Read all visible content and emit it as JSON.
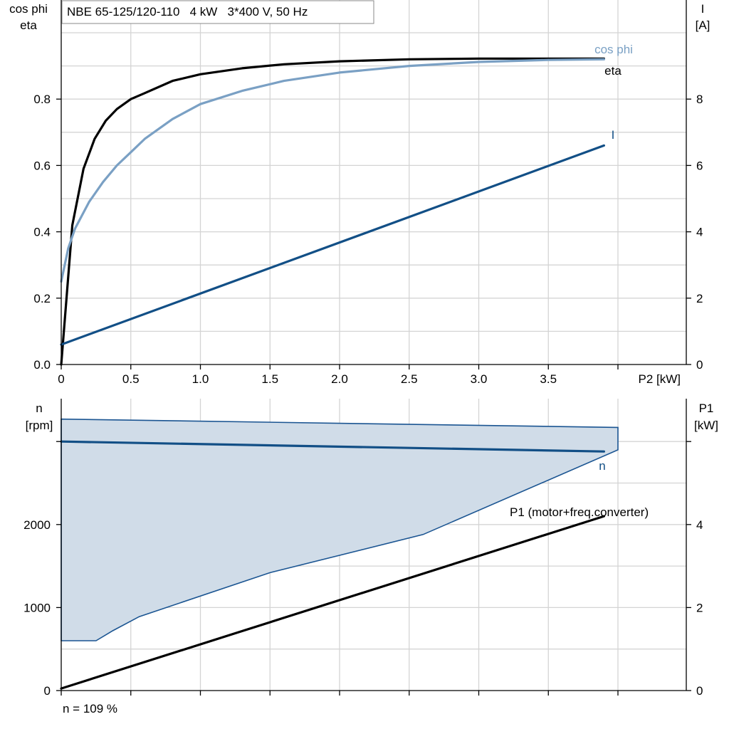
{
  "chart_data": [
    {
      "type": "line",
      "title": "NBE 65-125/120-110   4 kW   3*400 V, 50 Hz",
      "xlabel": "P2 [kW]",
      "ylabel_left": [
        "cos phi",
        "eta"
      ],
      "ylabel_right": [
        "I",
        "[A]"
      ],
      "xlim": [
        0,
        4.5
      ],
      "ylim_left": [
        0,
        1.0
      ],
      "ylim_right": [
        0,
        10
      ],
      "xticks": [
        0,
        0.5,
        1.0,
        1.5,
        2.0,
        2.5,
        3.0,
        3.5
      ],
      "xtick_labels": [
        "0",
        "0.5",
        "1.0",
        "1.5",
        "2.0",
        "2.5",
        "3.0",
        "3.5"
      ],
      "yticks_left": [
        0,
        0.2,
        0.4,
        0.6,
        0.8
      ],
      "ytick_labels_left": [
        "0.0",
        "0.2",
        "0.4",
        "0.6",
        "0.8"
      ],
      "yticks_right": [
        0,
        2,
        4,
        6,
        8
      ],
      "ytick_labels_right": [
        "0",
        "2",
        "4",
        "6",
        "8"
      ],
      "grid": true,
      "series": [
        {
          "name": "eta",
          "axis": "left",
          "color": "#000000",
          "x": [
            0,
            0.08,
            0.16,
            0.24,
            0.32,
            0.4,
            0.5,
            0.6,
            0.8,
            1.0,
            1.3,
            1.6,
            2.0,
            2.5,
            3.0,
            3.5,
            3.9
          ],
          "y": [
            0,
            0.42,
            0.59,
            0.68,
            0.735,
            0.77,
            0.8,
            0.818,
            0.855,
            0.875,
            0.893,
            0.905,
            0.914,
            0.92,
            0.922,
            0.922,
            0.922
          ]
        },
        {
          "name": "cos phi",
          "axis": "left",
          "color": "#7aa0c4",
          "x": [
            0,
            0.05,
            0.1,
            0.2,
            0.3,
            0.4,
            0.5,
            0.6,
            0.8,
            1.0,
            1.3,
            1.6,
            2.0,
            2.5,
            3.0,
            3.5,
            3.9
          ],
          "y": [
            0.25,
            0.35,
            0.41,
            0.49,
            0.55,
            0.6,
            0.64,
            0.68,
            0.74,
            0.785,
            0.825,
            0.855,
            0.88,
            0.9,
            0.912,
            0.918,
            0.92
          ]
        },
        {
          "name": "I",
          "axis": "right",
          "color": "#124f86",
          "x": [
            0,
            3.9
          ],
          "y": [
            0.6,
            6.6
          ]
        }
      ]
    },
    {
      "type": "line",
      "xlim": [
        0,
        4.5
      ],
      "ylabel_left": [
        "n",
        "[rpm]"
      ],
      "ylabel_right": [
        "P1",
        "[kW]"
      ],
      "ylim_left": [
        0,
        3400
      ],
      "ylim_right": [
        0,
        10
      ],
      "yticks_left": [
        0,
        1000,
        2000
      ],
      "ytick_labels_left": [
        "0",
        "1000",
        "2000"
      ],
      "yticks_right": [
        0,
        2,
        4
      ],
      "ytick_labels_right": [
        "0",
        "2",
        "4"
      ],
      "grid": true,
      "footnote": "n = 109 %",
      "series": [
        {
          "name": "n",
          "axis": "left",
          "color": "#124f86",
          "x": [
            0,
            3.9
          ],
          "y": [
            3000,
            2880
          ]
        },
        {
          "name": "P1 (motor+freq.converter)",
          "axis": "right",
          "color": "#000000",
          "x": [
            0,
            3.9
          ],
          "y": [
            0.05,
            4.2
          ]
        }
      ],
      "operating_range": {
        "fill": "#d0dce8",
        "stroke": "#1b5592",
        "x": [
          0,
          4.0,
          4.0,
          4.0,
          2.6,
          1.5,
          0.56,
          0.37,
          0.25,
          0
        ],
        "y": [
          3270,
          3170,
          2980,
          2900,
          1880,
          1420,
          890,
          720,
          600,
          600
        ]
      }
    }
  ]
}
